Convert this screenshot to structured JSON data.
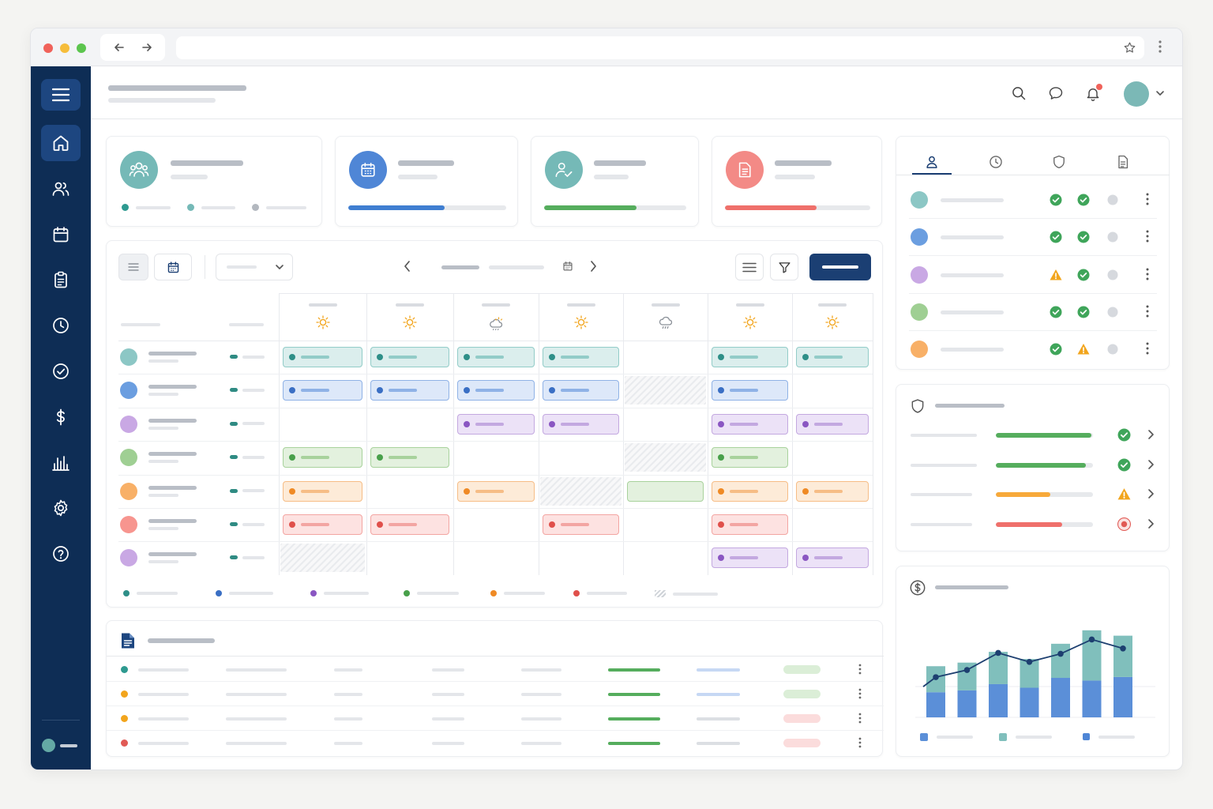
{
  "colors": {
    "navy": "#0e2d55",
    "navy_active": "#1d4680",
    "primary": "#1b3f73",
    "teal": "#75b9b7",
    "blue": "#5b8fd8",
    "purple": "#c9a8e4",
    "green": "#8fc88f",
    "orange": "#f8b067",
    "red": "#f38a86",
    "success": "#3fa55a",
    "warning": "#f2a51d",
    "danger": "#e15a55",
    "neutral_dot": "#d6d9de"
  },
  "browser": {
    "traffic_lights": [
      "#f0625a",
      "#f6bd3b",
      "#5cc54e"
    ],
    "icons": [
      "arrow-left-icon",
      "arrow-right-icon",
      "bookmark-star-icon",
      "more-vertical-icon"
    ]
  },
  "sidebar": {
    "items": [
      {
        "icon": "home-icon",
        "active": true
      },
      {
        "icon": "users-icon",
        "active": false
      },
      {
        "icon": "calendar-icon",
        "active": false
      },
      {
        "icon": "clipboard-icon",
        "active": false
      },
      {
        "icon": "clock-icon",
        "active": false
      },
      {
        "icon": "check-circle-icon",
        "active": false
      },
      {
        "icon": "dollar-icon",
        "active": false
      },
      {
        "icon": "bar-chart-icon",
        "active": false
      },
      {
        "icon": "settings-icon",
        "active": false
      },
      {
        "icon": "help-icon",
        "active": false
      }
    ],
    "user_color": "#64a9a5"
  },
  "header": {
    "title": "",
    "subtitle": "",
    "icons": [
      "search-icon",
      "chat-icon",
      "bell-icon"
    ],
    "has_notification": true,
    "avatar_color": "#7bb8b6"
  },
  "stats": [
    {
      "icon": "team-icon",
      "color": "#75b9b7",
      "legend": [
        "#2e9a90",
        "#75b9b7",
        "#b3b8bf"
      ]
    },
    {
      "icon": "calendar-icon",
      "color": "#4f86d6",
      "progress": 0.61,
      "bar_color": "#3f7ed1"
    },
    {
      "icon": "user-check-icon",
      "color": "#75b9b7",
      "progress": 0.65,
      "bar_color": "#55ad5d"
    },
    {
      "icon": "document-icon",
      "color": "#f38a86",
      "progress": 0.63,
      "bar_color": "#ef706b"
    }
  ],
  "schedule": {
    "days": [
      {
        "weather": "sun-icon"
      },
      {
        "weather": "sun-icon"
      },
      {
        "weather": "cloud-sun-icon"
      },
      {
        "weather": "sun-icon"
      },
      {
        "weather": "rain-icon"
      },
      {
        "weather": "sun-icon"
      },
      {
        "weather": "sun-icon"
      }
    ],
    "rows": [
      {
        "color": "teal",
        "cells": [
          "shift",
          "shift",
          "shift",
          "shift",
          "empty",
          "shift",
          "shift"
        ]
      },
      {
        "color": "blue",
        "cells": [
          "shift",
          "shift",
          "shift",
          "shift",
          "off",
          "shift",
          "empty"
        ]
      },
      {
        "color": "purple",
        "cells": [
          "empty",
          "empty",
          "shift",
          "shift",
          "empty",
          "shift",
          "shift"
        ]
      },
      {
        "color": "green",
        "cells": [
          "shift",
          "shift",
          "empty",
          "empty",
          "off",
          "shift",
          "empty"
        ]
      },
      {
        "color": "orange",
        "cells": [
          "shift",
          "empty",
          "shift",
          "off",
          "open",
          "shift",
          "shift"
        ]
      },
      {
        "color": "red",
        "cells": [
          "shift",
          "shift",
          "empty",
          "shift",
          "empty",
          "shift",
          "empty"
        ]
      },
      {
        "color": "purple",
        "cells": [
          "off",
          "empty",
          "empty",
          "empty",
          "empty",
          "shift",
          "shift"
        ]
      }
    ],
    "legend": [
      "teal",
      "blue",
      "purple",
      "green",
      "orange",
      "red",
      "off"
    ]
  },
  "documents": {
    "title": "",
    "rows": [
      {
        "dot": "#2e9a90",
        "badge": "#dbeed7",
        "tag": "#c6d8f4"
      },
      {
        "dot": "#f2a51d",
        "badge": "#dbeed7",
        "tag": "#c6d8f4"
      },
      {
        "dot": "#f2a51d",
        "badge": "#fbdcdc",
        "tag": "#dcdfe3"
      },
      {
        "dot": "#e15a55",
        "badge": "#fbdcdc",
        "tag": "#dcdfe3"
      }
    ]
  },
  "staff_panel": {
    "tabs": [
      "user-icon",
      "clock-icon",
      "shield-icon",
      "document-icon"
    ],
    "active_tab": 0,
    "rows": [
      {
        "color": "#8cc7c5",
        "status": [
          "ok",
          "ok",
          "none"
        ]
      },
      {
        "color": "#6b9ee0",
        "status": [
          "ok",
          "ok",
          "none"
        ]
      },
      {
        "color": "#c9a8e4",
        "status": [
          "warn",
          "ok",
          "none"
        ]
      },
      {
        "color": "#9fcf93",
        "status": [
          "ok",
          "ok",
          "none"
        ]
      },
      {
        "color": "#f8b067",
        "status": [
          "ok",
          "warn",
          "none"
        ]
      }
    ]
  },
  "compliance": {
    "title": "",
    "rows": [
      {
        "value": 0.98,
        "color": "#55ad5d",
        "status": "ok"
      },
      {
        "value": 0.93,
        "color": "#55ad5d",
        "status": "ok"
      },
      {
        "value": 0.56,
        "color": "#f7a93a",
        "status": "warn"
      },
      {
        "value": 0.68,
        "color": "#ef706b",
        "status": "error"
      }
    ]
  },
  "chart_data": {
    "type": "bar",
    "title": "",
    "stacked": true,
    "series": [
      {
        "name": "",
        "color": "#5b8fd8",
        "values": [
          28,
          30,
          37,
          33,
          44,
          41,
          45
        ]
      },
      {
        "name": "",
        "color": "#80bfbc",
        "values": [
          29,
          31,
          36,
          32,
          38,
          56,
          46
        ]
      },
      {
        "name": "",
        "type": "line",
        "color": "#1d3f70",
        "values": [
          80,
          88,
          107,
          97,
          106,
          122,
          112
        ]
      }
    ],
    "ylim": [
      0,
      125
    ],
    "grid": true,
    "legend_placement": "bottom"
  }
}
